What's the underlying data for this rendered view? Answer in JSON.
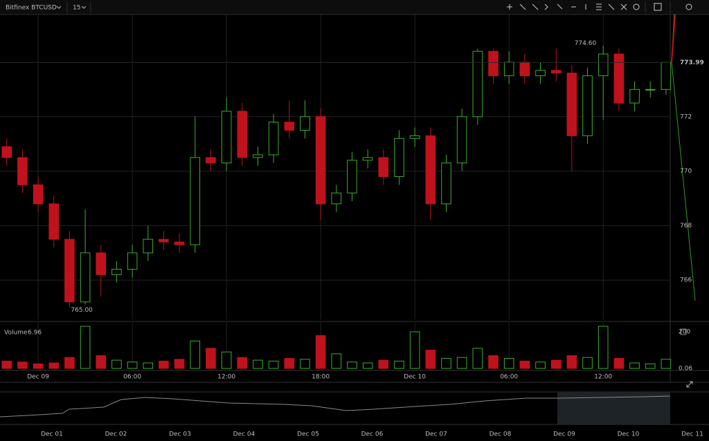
{
  "toolbar": {
    "symbol": "Bitfinex BTCUSD",
    "interval": "15"
  },
  "chart_data": {
    "type": "candlestick",
    "x": [
      -2,
      -1,
      0,
      1,
      2,
      3,
      4,
      5,
      6,
      7,
      8,
      9,
      10,
      11,
      12,
      13,
      14,
      15,
      16,
      17,
      18,
      19,
      20,
      21,
      22,
      23,
      24,
      25,
      26,
      27,
      28,
      29,
      30,
      31,
      32,
      33,
      34,
      35,
      36,
      37,
      38,
      39,
      40
    ],
    "open": [
      770.9,
      770.5,
      769.5,
      768.8,
      767.5,
      765.2,
      767.0,
      766.2,
      766.4,
      767.0,
      767.5,
      767.4,
      767.3,
      770.5,
      770.3,
      772.2,
      770.5,
      770.6,
      771.8,
      771.5,
      772.0,
      768.8,
      769.2,
      770.4,
      770.5,
      769.8,
      771.2,
      771.3,
      768.8,
      770.3,
      772.0,
      774.4,
      773.5,
      774.0,
      773.5,
      773.7,
      773.6,
      771.3,
      773.5,
      774.3,
      772.5,
      773.0,
      773.0
    ],
    "high": [
      771.2,
      770.8,
      769.8,
      769.1,
      767.8,
      768.6,
      767.3,
      766.7,
      767.3,
      768.0,
      767.8,
      767.7,
      772.0,
      770.8,
      772.7,
      772.5,
      770.9,
      772.1,
      772.6,
      772.6,
      772.3,
      769.5,
      770.7,
      770.8,
      770.8,
      771.5,
      771.6,
      771.6,
      770.6,
      772.3,
      774.5,
      774.5,
      774.4,
      774.3,
      774.0,
      774.5,
      773.9,
      773.8,
      774.6,
      774.5,
      773.3,
      773.3,
      774.0
    ],
    "low": [
      770.2,
      769.2,
      768.5,
      767.2,
      765.0,
      765.1,
      765.4,
      765.9,
      766.1,
      766.7,
      767.1,
      767.0,
      767.0,
      770.0,
      770.0,
      770.2,
      770.2,
      770.3,
      771.2,
      771.2,
      768.2,
      768.5,
      768.9,
      770.1,
      769.5,
      769.5,
      770.9,
      768.2,
      768.5,
      770.0,
      771.7,
      773.2,
      773.2,
      773.2,
      773.2,
      773.3,
      770.0,
      771.0,
      771.9,
      772.2,
      772.2,
      772.7,
      772.8
    ],
    "close": [
      770.5,
      769.5,
      768.8,
      767.5,
      765.2,
      767.0,
      766.2,
      766.4,
      767.0,
      767.5,
      767.4,
      767.3,
      770.5,
      770.3,
      772.2,
      770.5,
      770.6,
      771.8,
      771.5,
      772.0,
      768.8,
      769.2,
      770.4,
      770.5,
      769.8,
      771.2,
      771.3,
      768.8,
      770.3,
      772.0,
      774.4,
      773.5,
      774.0,
      773.5,
      773.7,
      773.6,
      771.3,
      773.5,
      774.3,
      772.5,
      773.0,
      773.0,
      773.99
    ],
    "volume": [
      40,
      35,
      25,
      30,
      60,
      230,
      70,
      45,
      35,
      30,
      40,
      50,
      150,
      110,
      90,
      60,
      45,
      40,
      55,
      50,
      180,
      80,
      35,
      30,
      45,
      40,
      200,
      100,
      55,
      60,
      110,
      70,
      55,
      40,
      35,
      45,
      70,
      60,
      230,
      55,
      30,
      25,
      50
    ],
    "up_color": "#3fae2a",
    "down_color": "#c0121c",
    "xlim": [
      -2.43,
      40.27
    ],
    "xticks": [
      {
        "value": 0,
        "label": "Dec 09"
      },
      {
        "value": 6,
        "label": "06:00"
      },
      {
        "value": 12,
        "label": "12:00"
      },
      {
        "value": 18,
        "label": "18:00"
      },
      {
        "value": 24,
        "label": "Dec 10"
      },
      {
        "value": 30,
        "label": "06:00"
      },
      {
        "value": 36,
        "label": "12:00"
      }
    ],
    "ylim": [
      764.56,
      775.75
    ],
    "yticks": [
      766,
      768,
      770,
      772
    ],
    "grid": true,
    "annotations": [
      {
        "label": "774.60",
        "value": 774.6
      },
      {
        "label": "765.00",
        "value": 765.0
      }
    ],
    "volume_title": "Volume",
    "volume_readout": 6.96,
    "volume_ylim": [
      0,
      238
    ],
    "volume_yticks": [
      0.06,
      200
    ]
  },
  "navigator": {
    "labels": [
      "Dec 01",
      "Dec 02",
      "Dec 03",
      "Dec 04",
      "Dec 05",
      "Dec 06",
      "Dec 07",
      "Dec 08",
      "Dec 09",
      "Dec 10",
      "Dec 11"
    ]
  }
}
